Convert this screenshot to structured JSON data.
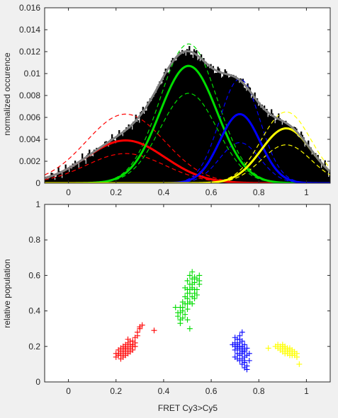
{
  "chart_data": [
    {
      "type": "histogram",
      "ylabel": "normalized occurence",
      "xlim": [
        -0.1,
        1.1
      ],
      "ylim": [
        0,
        0.016
      ],
      "xticks": [
        0,
        0.2,
        0.4,
        0.6,
        0.8,
        1
      ],
      "yticks": [
        0,
        0.002,
        0.004,
        0.006,
        0.008,
        0.01,
        0.012,
        0.014,
        0.016
      ],
      "histogram": {
        "color": "#000000",
        "bin_edges_from": -0.1,
        "bin_edges_to": 1.1,
        "bin_count": 240,
        "envelope_color": "#808080"
      },
      "series": [
        {
          "color": "#ff0000",
          "mu": 0.24,
          "sigma": 0.165,
          "amp": 0.0039,
          "ci_upper_amp": 0.0063,
          "ci_lower_amp": 0.0027
        },
        {
          "color": "#00dd00",
          "mu": 0.505,
          "sigma": 0.12,
          "amp": 0.0107,
          "ci_upper_amp": 0.0127,
          "ci_lower_amp": 0.0082
        },
        {
          "color": "#0000ff",
          "mu": 0.72,
          "sigma": 0.085,
          "amp": 0.0063,
          "ci_upper_amp": 0.0095,
          "ci_lower_amp": 0.0037
        },
        {
          "color": "#ffff00",
          "mu": 0.915,
          "sigma": 0.105,
          "amp": 0.005,
          "ci_upper_amp": 0.0065,
          "ci_lower_amp": 0.0035
        }
      ]
    },
    {
      "type": "scatter",
      "xlabel": "FRET Cy3>Cy5",
      "ylabel": "relative population",
      "xlim": [
        -0.1,
        1.1
      ],
      "ylim": [
        0,
        1
      ],
      "xticks": [
        0,
        0.2,
        0.4,
        0.6,
        0.8,
        1
      ],
      "yticks": [
        0,
        0.2,
        0.4,
        0.6,
        0.8,
        1
      ],
      "marker": "+",
      "series": [
        {
          "color": "#ff0000",
          "points": [
            [
              0.2,
              0.14
            ],
            [
              0.21,
              0.16
            ],
            [
              0.22,
              0.17
            ],
            [
              0.23,
              0.18
            ],
            [
              0.24,
              0.19
            ],
            [
              0.25,
              0.2
            ],
            [
              0.26,
              0.21
            ],
            [
              0.27,
              0.23
            ],
            [
              0.28,
              0.25
            ],
            [
              0.29,
              0.28
            ],
            [
              0.3,
              0.31
            ],
            [
              0.31,
              0.32
            ],
            [
              0.36,
              0.29
            ],
            [
              0.22,
              0.15
            ],
            [
              0.23,
              0.16
            ],
            [
              0.24,
              0.17
            ],
            [
              0.25,
              0.18
            ],
            [
              0.26,
              0.19
            ],
            [
              0.27,
              0.2
            ],
            [
              0.28,
              0.22
            ],
            [
              0.24,
              0.21
            ],
            [
              0.23,
              0.2
            ],
            [
              0.25,
              0.22
            ],
            [
              0.21,
              0.18
            ],
            [
              0.26,
              0.23
            ],
            [
              0.22,
              0.19
            ],
            [
              0.27,
              0.18
            ],
            [
              0.25,
              0.16
            ],
            [
              0.24,
              0.15
            ],
            [
              0.2,
              0.16
            ],
            [
              0.28,
              0.2
            ],
            [
              0.26,
              0.17
            ],
            [
              0.23,
              0.14
            ],
            [
              0.29,
              0.26
            ],
            [
              0.3,
              0.3
            ],
            [
              0.22,
              0.13
            ],
            [
              0.21,
              0.15
            ],
            [
              0.25,
              0.24
            ],
            [
              0.27,
              0.21
            ],
            [
              0.24,
              0.19
            ]
          ]
        },
        {
          "color": "#00dd00",
          "points": [
            [
              0.47,
              0.42
            ],
            [
              0.48,
              0.4
            ],
            [
              0.49,
              0.44
            ],
            [
              0.5,
              0.47
            ],
            [
              0.51,
              0.5
            ],
            [
              0.52,
              0.53
            ],
            [
              0.53,
              0.56
            ],
            [
              0.54,
              0.58
            ],
            [
              0.55,
              0.6
            ],
            [
              0.5,
              0.52
            ],
            [
              0.51,
              0.55
            ],
            [
              0.52,
              0.48
            ],
            [
              0.53,
              0.5
            ],
            [
              0.49,
              0.38
            ],
            [
              0.48,
              0.36
            ],
            [
              0.47,
              0.35
            ],
            [
              0.5,
              0.41
            ],
            [
              0.46,
              0.39
            ],
            [
              0.45,
              0.42
            ],
            [
              0.51,
              0.45
            ],
            [
              0.52,
              0.44
            ],
            [
              0.5,
              0.57
            ],
            [
              0.51,
              0.6
            ],
            [
              0.52,
              0.62
            ],
            [
              0.53,
              0.59
            ],
            [
              0.54,
              0.52
            ],
            [
              0.55,
              0.55
            ],
            [
              0.49,
              0.48
            ],
            [
              0.48,
              0.45
            ],
            [
              0.5,
              0.35
            ],
            [
              0.47,
              0.33
            ],
            [
              0.51,
              0.3
            ],
            [
              0.53,
              0.47
            ],
            [
              0.52,
              0.58
            ],
            [
              0.5,
              0.5
            ],
            [
              0.49,
              0.53
            ],
            [
              0.54,
              0.49
            ],
            [
              0.46,
              0.37
            ],
            [
              0.52,
              0.55
            ],
            [
              0.53,
              0.52
            ],
            [
              0.5,
              0.44
            ],
            [
              0.51,
              0.52
            ],
            [
              0.48,
              0.42
            ],
            [
              0.47,
              0.39
            ],
            [
              0.55,
              0.57
            ]
          ]
        },
        {
          "color": "#0000ff",
          "points": [
            [
              0.7,
              0.18
            ],
            [
              0.71,
              0.2
            ],
            [
              0.72,
              0.22
            ],
            [
              0.73,
              0.19
            ],
            [
              0.74,
              0.17
            ],
            [
              0.72,
              0.15
            ],
            [
              0.73,
              0.13
            ],
            [
              0.74,
              0.11
            ],
            [
              0.75,
              0.09
            ],
            [
              0.75,
              0.07
            ],
            [
              0.76,
              0.12
            ],
            [
              0.71,
              0.24
            ],
            [
              0.72,
              0.26
            ],
            [
              0.73,
              0.28
            ],
            [
              0.7,
              0.25
            ],
            [
              0.69,
              0.21
            ],
            [
              0.7,
              0.14
            ],
            [
              0.71,
              0.16
            ],
            [
              0.72,
              0.2
            ],
            [
              0.73,
              0.23
            ],
            [
              0.74,
              0.21
            ],
            [
              0.75,
              0.15
            ],
            [
              0.74,
              0.14
            ],
            [
              0.73,
              0.16
            ],
            [
              0.72,
              0.18
            ],
            [
              0.71,
              0.19
            ],
            [
              0.7,
              0.22
            ],
            [
              0.73,
              0.1
            ],
            [
              0.74,
              0.08
            ],
            [
              0.72,
              0.12
            ],
            [
              0.71,
              0.13
            ],
            [
              0.76,
              0.16
            ],
            [
              0.75,
              0.19
            ],
            [
              0.73,
              0.2
            ],
            [
              0.72,
              0.24
            ],
            [
              0.74,
              0.18
            ],
            [
              0.71,
              0.21
            ],
            [
              0.7,
              0.2
            ],
            [
              0.73,
              0.17
            ],
            [
              0.74,
              0.12
            ]
          ]
        },
        {
          "color": "#ffff00",
          "points": [
            [
              0.87,
              0.2
            ],
            [
              0.88,
              0.19
            ],
            [
              0.89,
              0.2
            ],
            [
              0.9,
              0.19
            ],
            [
              0.91,
              0.18
            ],
            [
              0.92,
              0.18
            ],
            [
              0.93,
              0.17
            ],
            [
              0.94,
              0.16
            ],
            [
              0.95,
              0.15
            ],
            [
              0.96,
              0.14
            ],
            [
              0.97,
              0.1
            ],
            [
              0.84,
              0.19
            ],
            [
              0.9,
              0.21
            ],
            [
              0.91,
              0.2
            ],
            [
              0.92,
              0.19
            ],
            [
              0.93,
              0.19
            ],
            [
              0.89,
              0.18
            ],
            [
              0.9,
              0.17
            ],
            [
              0.91,
              0.16
            ],
            [
              0.94,
              0.18
            ],
            [
              0.95,
              0.17
            ],
            [
              0.92,
              0.16
            ],
            [
              0.93,
              0.15
            ],
            [
              0.88,
              0.21
            ],
            [
              0.96,
              0.16
            ],
            [
              0.9,
              0.2
            ],
            [
              0.91,
              0.19
            ],
            [
              0.92,
              0.17
            ],
            [
              0.94,
              0.15
            ],
            [
              0.93,
              0.18
            ]
          ]
        }
      ]
    }
  ]
}
